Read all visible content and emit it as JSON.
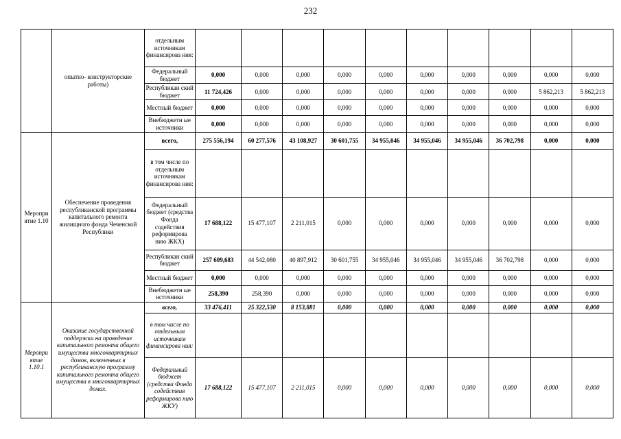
{
  "page_number": "232",
  "table": {
    "sections": [
      {
        "group_label": "",
        "description": "опытно- конструкторские работы)",
        "italic": false,
        "desc_valign": "top",
        "rows": [
          {
            "source": "отдельным источникам финансирова ния:",
            "values": null,
            "source_align": "top"
          },
          {
            "source": "Федеральный бюджет",
            "first_bold": true,
            "values": [
              "0,000",
              "0,000",
              "0,000",
              "0,000",
              "0,000",
              "0,000",
              "0,000",
              "0,000",
              "0,000",
              "0,000"
            ]
          },
          {
            "source": "Республикан ский бюджет",
            "first_bold": true,
            "values": [
              "11 724,426",
              "0,000",
              "0,000",
              "0,000",
              "0,000",
              "0,000",
              "0,000",
              "0,000",
              "5 862,213",
              "5 862,213"
            ]
          },
          {
            "source": "Местный бюджет",
            "first_bold": true,
            "values": [
              "0,000",
              "0,000",
              "0,000",
              "0,000",
              "0,000",
              "0,000",
              "0,000",
              "0,000",
              "0,000",
              "0,000"
            ]
          },
          {
            "source": "Внебюджетн ые источники",
            "first_bold": true,
            "values": [
              "0,000",
              "0,000",
              "0,000",
              "0,000",
              "0,000",
              "0,000",
              "0,000",
              "0,000",
              "0,000",
              "0,000"
            ]
          }
        ]
      },
      {
        "group_label": "Меропри ятие 1.10",
        "description": "Обеспечение проведения республиканской программы капитального ремонта жилищного фонда Чеченской Республики",
        "italic": false,
        "rows": [
          {
            "source": "всего,",
            "bold": true,
            "values": [
              "275 556,194",
              "60 277,576",
              "43 108,927",
              "30 601,755",
              "34 955,046",
              "34 955,046",
              "34 955,046",
              "36 702,798",
              "0,000",
              "0,000"
            ]
          },
          {
            "source": "в том числе по отдельным источникам финансирова ния:",
            "values": null
          },
          {
            "source": "Федеральный бюджет (средства Фонда содействия реформирова нию ЖКХ)",
            "first_bold": true,
            "values": [
              "17 688,122",
              "15 477,107",
              "2 211,015",
              "0,000",
              "0,000",
              "0,000",
              "0,000",
              "0,000",
              "0,000",
              "0,000"
            ]
          },
          {
            "source": "Республикан ский бюджет",
            "first_bold": true,
            "values": [
              "257 609,683",
              "44 542,080",
              "40 897,912",
              "30 601,755",
              "34 955,046",
              "34 955,046",
              "34 955,046",
              "36 702,798",
              "0,000",
              "0,000"
            ]
          },
          {
            "source": "Местный бюджет",
            "first_bold": true,
            "values": [
              "0,000",
              "0,000",
              "0,000",
              "0,000",
              "0,000",
              "0,000",
              "0,000",
              "0,000",
              "0,000",
              "0,000"
            ]
          },
          {
            "source": "Внебюджетн ые источники",
            "first_bold": true,
            "values": [
              "258,390",
              "258,390",
              "0,000",
              "0,000",
              "0,000",
              "0,000",
              "0,000",
              "0,000",
              "0,000",
              "0,000"
            ]
          }
        ]
      },
      {
        "group_label": "Меропри ятие 1.10.1",
        "description": "Оказание государственной поддержки на проведение капитального ремонта общего имущества многоквартирных домов, включенных в республиканскую программу капитального ремонта общего имущества в многоквартирных домах.",
        "italic": true,
        "rows": [
          {
            "source": "всего,",
            "bold": true,
            "values": [
              "33 476,411",
              "25 322,530",
              "8 153,881",
              "0,000",
              "0,000",
              "0,000",
              "0,000",
              "0,000",
              "0,000",
              "0,000"
            ]
          },
          {
            "source": "в том числе по отдельным источникам финансирова ния:",
            "values": null
          },
          {
            "source": "Федеральный бюджет (средства Фонда содействия реформирова нию ЖКУ)",
            "first_bold": true,
            "values": [
              "17 688,122",
              "15 477,107",
              "2 211,015",
              "0,000",
              "0,000",
              "0,000",
              "0,000",
              "0,000",
              "0,000",
              "0,000"
            ]
          }
        ]
      }
    ]
  }
}
